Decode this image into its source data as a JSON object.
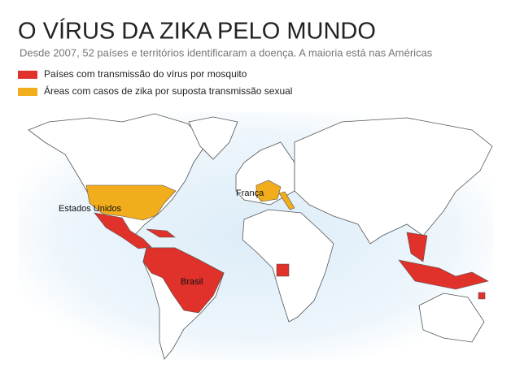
{
  "header": {
    "title": "O VÍRUS DA ZIKA PELO MUNDO",
    "subtitle": "Desde 2007, 52 países e territórios identificaram a doença. A maioria está nas Américas"
  },
  "legend": [
    {
      "label": "Países com transmissão do vírus por mosquito",
      "color": "#e0312a"
    },
    {
      "label": "Áreas com casos de zika por suposta transmissão sexual",
      "color": "#f2ad1c"
    }
  ],
  "map": {
    "labels": [
      "Estados Unidos",
      "França",
      "Brasil"
    ]
  }
}
